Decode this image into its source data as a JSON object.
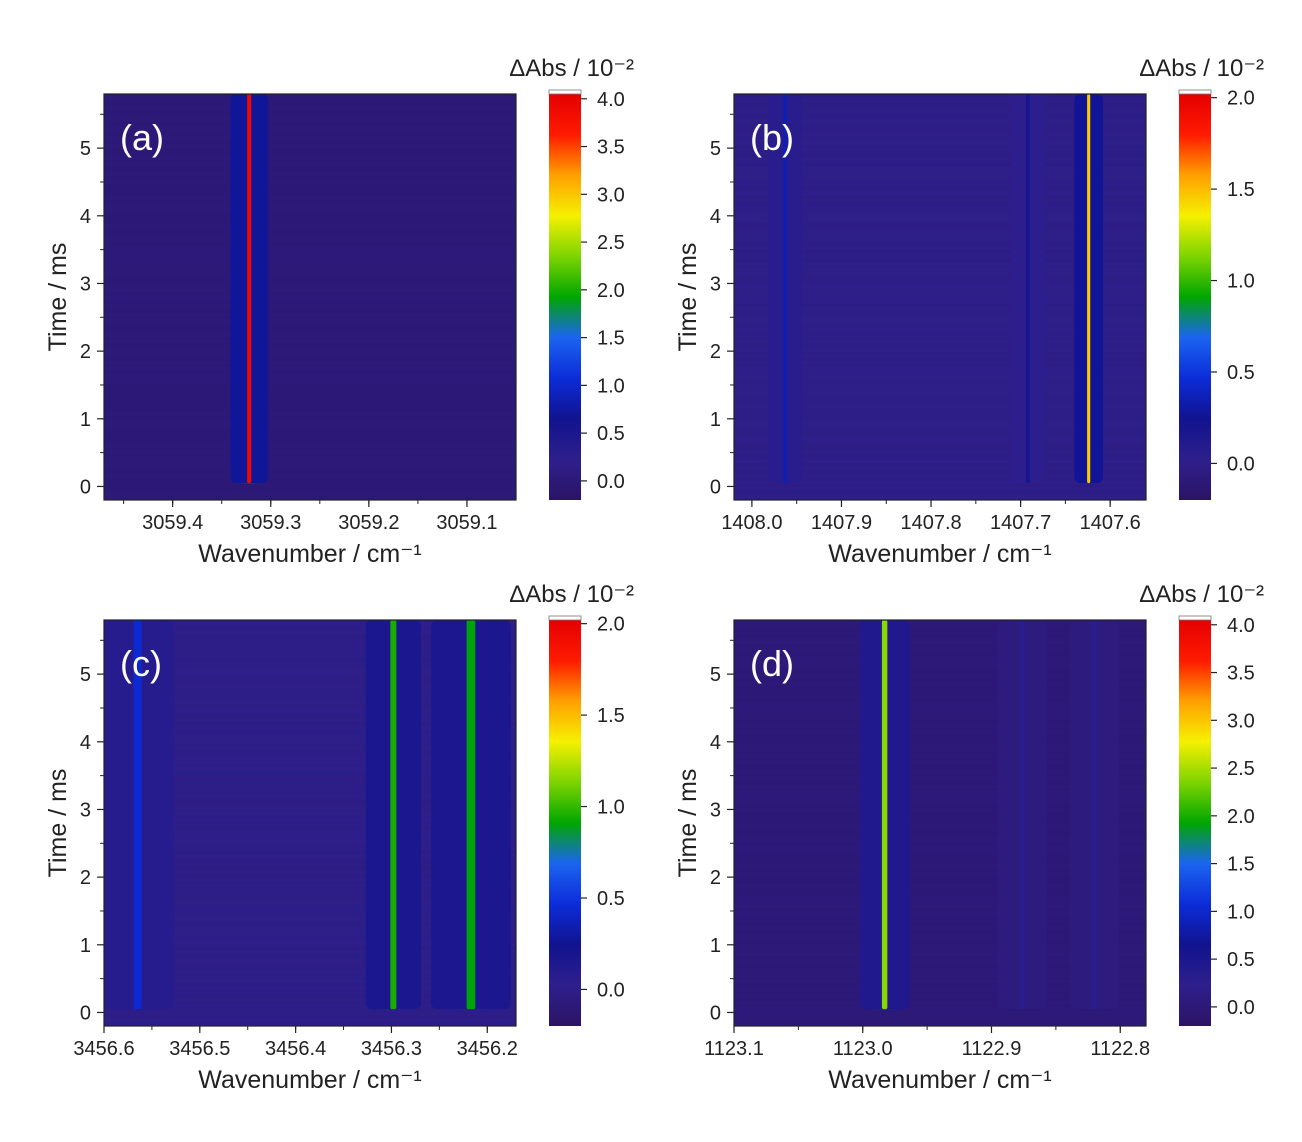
{
  "figure": {
    "colorbar_stops": [
      "#2b1466",
      "#2e1f8c",
      "#11138f",
      "#0c2cd8",
      "#1b64f0",
      "#00a600",
      "#7dd400",
      "#f5f000",
      "#ffa000",
      "#ff1a00",
      "#e40000"
    ]
  },
  "chart_data": [
    {
      "type": "heatmap",
      "label": "(a)",
      "xlabel": "Wavenumber / cm⁻¹",
      "ylabel": "Time / ms",
      "xlim": [
        3059.47,
        3059.05
      ],
      "ylim": [
        -0.2,
        5.8
      ],
      "xticks": [
        3059.4,
        3059.3,
        3059.2,
        3059.1
      ],
      "xtick_labels": [
        "3059.4",
        "3059.3",
        "3059.2",
        "3059.1"
      ],
      "yticks": [
        0,
        1,
        2,
        3,
        4,
        5
      ],
      "ytick_labels": [
        "0",
        "1",
        "2",
        "3",
        "4",
        "5"
      ],
      "time_range": [
        0.05,
        5.8
      ],
      "lines": [
        {
          "wavenumber": 3059.322,
          "peak": 3.9,
          "width": 0.006
        }
      ],
      "colorbar": {
        "title": "ΔAbs / 10⁻²",
        "range": [
          -0.2,
          4.05
        ],
        "ticks": [
          0,
          0.5,
          1,
          1.5,
          2,
          2.5,
          3,
          3.5,
          4
        ],
        "tick_labels": [
          "0.0",
          "0.5",
          "1.0",
          "1.5",
          "2.0",
          "2.5",
          "3.0",
          "3.5",
          "4.0"
        ]
      }
    },
    {
      "type": "heatmap",
      "label": "(b)",
      "xlabel": "Wavenumber / cm⁻¹",
      "ylabel": "Time / ms",
      "xlim": [
        1408.02,
        1407.56
      ],
      "ylim": [
        -0.2,
        5.8
      ],
      "xticks": [
        1408.0,
        1407.9,
        1407.8,
        1407.7,
        1407.6
      ],
      "xtick_labels": [
        "1408.0",
        "1407.9",
        "1407.8",
        "1407.7",
        "1407.6"
      ],
      "yticks": [
        0,
        1,
        2,
        3,
        4,
        5
      ],
      "ytick_labels": [
        "0",
        "1",
        "2",
        "3",
        "4",
        "5"
      ],
      "time_range": [
        0.05,
        5.8
      ],
      "lines": [
        {
          "wavenumber": 1407.963,
          "peak": 0.35,
          "width": 0.006
        },
        {
          "wavenumber": 1407.692,
          "peak": 0.2,
          "width": 0.006
        },
        {
          "wavenumber": 1407.624,
          "peak": 1.45,
          "width": 0.005
        }
      ],
      "colorbar": {
        "title": "ΔAbs / 10⁻²",
        "range": [
          -0.2,
          2.02
        ],
        "ticks": [
          0,
          0.5,
          1,
          1.5,
          2
        ],
        "tick_labels": [
          "0.0",
          "0.5",
          "1.0",
          "1.5",
          "2.0"
        ]
      }
    },
    {
      "type": "heatmap",
      "label": "(c)",
      "xlabel": "Wavenumber / cm⁻¹",
      "ylabel": "Time / ms",
      "xlim": [
        3456.6,
        3456.17
      ],
      "ylim": [
        -0.2,
        5.8
      ],
      "xticks": [
        3456.6,
        3456.5,
        3456.4,
        3456.3,
        3456.2
      ],
      "xtick_labels": [
        "3456.6",
        "3456.5",
        "3456.4",
        "3456.3",
        "3456.2"
      ],
      "yticks": [
        0,
        1,
        2,
        3,
        4,
        5
      ],
      "ytick_labels": [
        "0",
        "1",
        "2",
        "3",
        "4",
        "5"
      ],
      "time_range": [
        0.05,
        5.8
      ],
      "lines": [
        {
          "wavenumber": 3456.565,
          "peak": 0.45,
          "width": 0.012
        },
        {
          "wavenumber": 3456.298,
          "peak": 0.95,
          "width": 0.009
        },
        {
          "wavenumber": 3456.217,
          "peak": 0.9,
          "width": 0.013
        }
      ],
      "colorbar": {
        "title": "ΔAbs / 10⁻²",
        "range": [
          -0.2,
          2.02
        ],
        "ticks": [
          0,
          0.5,
          1,
          1.5,
          2
        ],
        "tick_labels": [
          "0.0",
          "0.5",
          "1.0",
          "1.5",
          "2.0"
        ]
      }
    },
    {
      "type": "heatmap",
      "label": "(d)",
      "xlabel": "Wavenumber / cm⁻¹",
      "ylabel": "Time / ms",
      "xlim": [
        1123.1,
        1122.78
      ],
      "ylim": [
        -0.2,
        5.8
      ],
      "xticks": [
        1123.1,
        1123.0,
        1122.9,
        1122.8
      ],
      "xtick_labels": [
        "1123.1",
        "1123.0",
        "1122.9",
        "1122.8"
      ],
      "yticks": [
        0,
        1,
        2,
        3,
        4,
        5
      ],
      "ytick_labels": [
        "0",
        "1",
        "2",
        "3",
        "4",
        "5"
      ],
      "time_range": [
        0.05,
        5.8
      ],
      "lines": [
        {
          "wavenumber": 1122.983,
          "peak": 2.4,
          "width": 0.006
        },
        {
          "wavenumber": 1122.876,
          "peak": 0.3,
          "width": 0.006
        },
        {
          "wavenumber": 1122.82,
          "peak": 0.3,
          "width": 0.006
        }
      ],
      "colorbar": {
        "title": "ΔAbs / 10⁻²",
        "range": [
          -0.2,
          4.05
        ],
        "ticks": [
          0,
          0.5,
          1,
          1.5,
          2,
          2.5,
          3,
          3.5,
          4
        ],
        "tick_labels": [
          "0.0",
          "0.5",
          "1.0",
          "1.5",
          "2.0",
          "2.5",
          "3.0",
          "3.5",
          "4.0"
        ]
      }
    }
  ]
}
